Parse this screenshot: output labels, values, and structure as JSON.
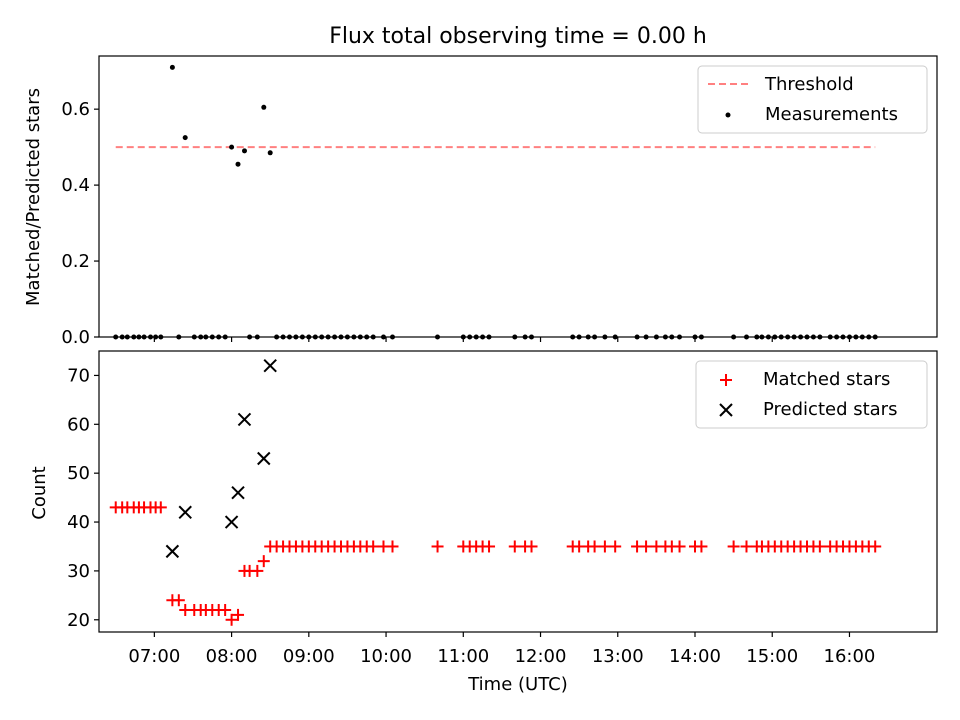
{
  "chart_data": [
    {
      "type": "scatter",
      "title": "Flux total observing time = 0.00 h",
      "xlabel": "",
      "ylabel": "Matched/Predicted stars",
      "xlim": [
        "06:17",
        "17:08"
      ],
      "ylim": [
        0.0,
        0.74
      ],
      "yticks": [
        0.0,
        0.2,
        0.4,
        0.6
      ],
      "ytick_labels": [
        "0.0",
        "0.2",
        "0.4",
        "0.6"
      ],
      "legend_position": "top-right",
      "threshold": {
        "name": "Threshold",
        "color": "#ff8080",
        "style": "dashed",
        "y": 0.5,
        "x_start": "06:30",
        "x_end": "16:20"
      },
      "series": [
        {
          "name": "Measurements",
          "marker": "dot",
          "color": "#000000",
          "points": [
            [
              "06:30",
              0
            ],
            [
              "06:35",
              0
            ],
            [
              "06:39",
              0
            ],
            [
              "06:44",
              0
            ],
            [
              "06:48",
              0
            ],
            [
              "06:52",
              0
            ],
            [
              "06:57",
              0
            ],
            [
              "07:01",
              0
            ],
            [
              "07:05",
              0
            ],
            [
              "07:14",
              0.71
            ],
            [
              "07:24",
              0.525
            ],
            [
              "08:00",
              0.5
            ],
            [
              "08:05",
              0.455
            ],
            [
              "08:10",
              0.49
            ],
            [
              "08:25",
              0.605
            ],
            [
              "08:30",
              0.485
            ],
            [
              "07:19",
              0
            ],
            [
              "07:31",
              0
            ],
            [
              "07:36",
              0
            ],
            [
              "07:40",
              0
            ],
            [
              "07:45",
              0
            ],
            [
              "07:50",
              0
            ],
            [
              "07:55",
              0
            ],
            [
              "08:14",
              0
            ],
            [
              "08:20",
              0
            ],
            [
              "08:35",
              0
            ],
            [
              "08:40",
              0
            ],
            [
              "08:45",
              0
            ],
            [
              "08:50",
              0
            ],
            [
              "08:55",
              0
            ],
            [
              "09:00",
              0
            ],
            [
              "09:05",
              0
            ],
            [
              "09:10",
              0
            ],
            [
              "09:15",
              0
            ],
            [
              "09:20",
              0
            ],
            [
              "09:25",
              0
            ],
            [
              "09:30",
              0
            ],
            [
              "09:35",
              0
            ],
            [
              "09:40",
              0
            ],
            [
              "09:45",
              0
            ],
            [
              "09:50",
              0
            ],
            [
              "09:58",
              0
            ],
            [
              "10:05",
              0
            ],
            [
              "10:40",
              0
            ],
            [
              "11:00",
              0
            ],
            [
              "11:05",
              0
            ],
            [
              "11:10",
              0
            ],
            [
              "11:15",
              0
            ],
            [
              "11:20",
              0
            ],
            [
              "11:40",
              0
            ],
            [
              "11:48",
              0
            ],
            [
              "11:53",
              0
            ],
            [
              "12:25",
              0
            ],
            [
              "12:30",
              0
            ],
            [
              "12:37",
              0
            ],
            [
              "12:42",
              0
            ],
            [
              "12:50",
              0
            ],
            [
              "12:58",
              0
            ],
            [
              "13:15",
              0
            ],
            [
              "13:22",
              0
            ],
            [
              "13:30",
              0
            ],
            [
              "13:37",
              0
            ],
            [
              "13:42",
              0
            ],
            [
              "13:48",
              0
            ],
            [
              "14:00",
              0
            ],
            [
              "14:05",
              0
            ],
            [
              "14:30",
              0
            ],
            [
              "14:40",
              0
            ],
            [
              "14:48",
              0
            ],
            [
              "14:52",
              0
            ],
            [
              "14:57",
              0
            ],
            [
              "15:02",
              0
            ],
            [
              "15:07",
              0
            ],
            [
              "15:12",
              0
            ],
            [
              "15:17",
              0
            ],
            [
              "15:22",
              0
            ],
            [
              "15:27",
              0
            ],
            [
              "15:32",
              0
            ],
            [
              "15:37",
              0
            ],
            [
              "15:45",
              0
            ],
            [
              "15:50",
              0
            ],
            [
              "15:55",
              0
            ],
            [
              "16:00",
              0
            ],
            [
              "16:05",
              0
            ],
            [
              "16:10",
              0
            ],
            [
              "16:15",
              0
            ],
            [
              "16:20",
              0
            ]
          ]
        }
      ]
    },
    {
      "type": "scatter",
      "title": "",
      "xlabel": "Time (UTC)",
      "ylabel": "Count",
      "xlim": [
        "06:17",
        "17:08"
      ],
      "ylim": [
        17.5,
        75
      ],
      "yticks": [
        20,
        30,
        40,
        50,
        60,
        70
      ],
      "ytick_labels": [
        "20",
        "30",
        "40",
        "50",
        "60",
        "70"
      ],
      "xticks": [
        "07:00",
        "08:00",
        "09:00",
        "10:00",
        "11:00",
        "12:00",
        "13:00",
        "14:00",
        "15:00",
        "16:00"
      ],
      "xtick_labels": [
        "07:00",
        "08:00",
        "09:00",
        "10:00",
        "11:00",
        "12:00",
        "13:00",
        "14:00",
        "15:00",
        "16:00"
      ],
      "legend_position": "top-right",
      "series": [
        {
          "name": "Matched stars",
          "marker": "plus",
          "color": "#ff0000",
          "points": [
            [
              "06:30",
              43
            ],
            [
              "06:35",
              43
            ],
            [
              "06:39",
              43
            ],
            [
              "06:44",
              43
            ],
            [
              "06:48",
              43
            ],
            [
              "06:52",
              43
            ],
            [
              "06:57",
              43
            ],
            [
              "07:01",
              43
            ],
            [
              "07:05",
              43
            ],
            [
              "07:14",
              24
            ],
            [
              "07:19",
              24
            ],
            [
              "07:24",
              22
            ],
            [
              "07:31",
              22
            ],
            [
              "07:36",
              22
            ],
            [
              "07:40",
              22
            ],
            [
              "07:45",
              22
            ],
            [
              "07:50",
              22
            ],
            [
              "07:55",
              22
            ],
            [
              "08:00",
              20
            ],
            [
              "08:05",
              21
            ],
            [
              "08:10",
              30
            ],
            [
              "08:14",
              30
            ],
            [
              "08:20",
              30
            ],
            [
              "08:25",
              32
            ],
            [
              "08:30",
              35
            ],
            [
              "08:35",
              35
            ],
            [
              "08:40",
              35
            ],
            [
              "08:45",
              35
            ],
            [
              "08:50",
              35
            ],
            [
              "08:55",
              35
            ],
            [
              "09:00",
              35
            ],
            [
              "09:05",
              35
            ],
            [
              "09:10",
              35
            ],
            [
              "09:15",
              35
            ],
            [
              "09:20",
              35
            ],
            [
              "09:25",
              35
            ],
            [
              "09:30",
              35
            ],
            [
              "09:35",
              35
            ],
            [
              "09:40",
              35
            ],
            [
              "09:45",
              35
            ],
            [
              "09:50",
              35
            ],
            [
              "09:58",
              35
            ],
            [
              "10:05",
              35
            ],
            [
              "10:40",
              35
            ],
            [
              "11:00",
              35
            ],
            [
              "11:05",
              35
            ],
            [
              "11:10",
              35
            ],
            [
              "11:15",
              35
            ],
            [
              "11:20",
              35
            ],
            [
              "11:40",
              35
            ],
            [
              "11:48",
              35
            ],
            [
              "11:53",
              35
            ],
            [
              "12:25",
              35
            ],
            [
              "12:30",
              35
            ],
            [
              "12:37",
              35
            ],
            [
              "12:42",
              35
            ],
            [
              "12:50",
              35
            ],
            [
              "12:58",
              35
            ],
            [
              "13:15",
              35
            ],
            [
              "13:22",
              35
            ],
            [
              "13:30",
              35
            ],
            [
              "13:37",
              35
            ],
            [
              "13:42",
              35
            ],
            [
              "13:48",
              35
            ],
            [
              "14:00",
              35
            ],
            [
              "14:05",
              35
            ],
            [
              "14:30",
              35
            ],
            [
              "14:40",
              35
            ],
            [
              "14:48",
              35
            ],
            [
              "14:52",
              35
            ],
            [
              "14:57",
              35
            ],
            [
              "15:02",
              35
            ],
            [
              "15:07",
              35
            ],
            [
              "15:12",
              35
            ],
            [
              "15:17",
              35
            ],
            [
              "15:22",
              35
            ],
            [
              "15:27",
              35
            ],
            [
              "15:32",
              35
            ],
            [
              "15:37",
              35
            ],
            [
              "15:45",
              35
            ],
            [
              "15:50",
              35
            ],
            [
              "15:55",
              35
            ],
            [
              "16:00",
              35
            ],
            [
              "16:05",
              35
            ],
            [
              "16:10",
              35
            ],
            [
              "16:15",
              35
            ],
            [
              "16:20",
              35
            ]
          ]
        },
        {
          "name": "Predicted stars",
          "marker": "x",
          "color": "#000000",
          "points": [
            [
              "07:14",
              34
            ],
            [
              "07:24",
              42
            ],
            [
              "08:00",
              40
            ],
            [
              "08:05",
              46
            ],
            [
              "08:10",
              61
            ],
            [
              "08:25",
              53
            ],
            [
              "08:30",
              72
            ]
          ]
        }
      ]
    }
  ]
}
